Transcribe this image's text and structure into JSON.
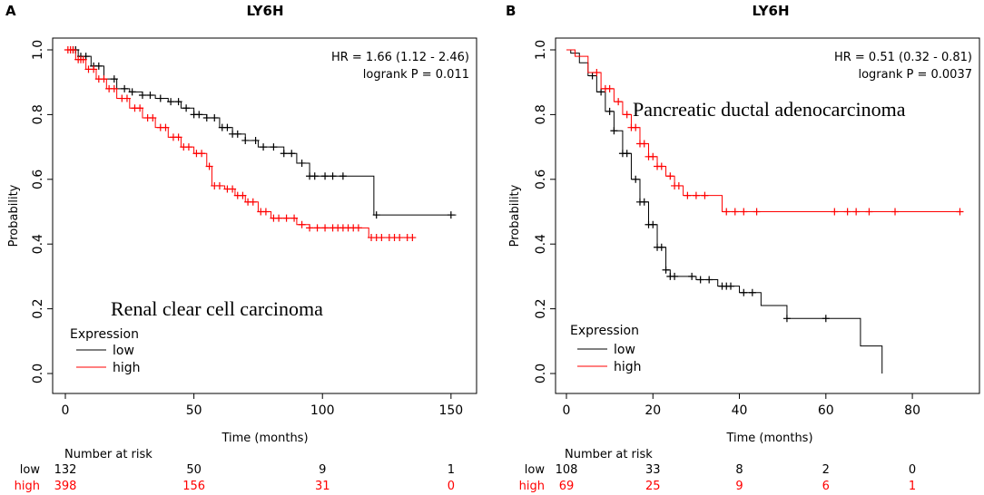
{
  "chart_data": [
    {
      "type": "line",
      "panel_label": "A",
      "title": "LY6H",
      "subtitle": "Renal clear cell carcinoma",
      "xlabel": "Time (months)",
      "ylabel": "Probability",
      "xlim": [
        0,
        155
      ],
      "ylim": [
        0,
        1.0
      ],
      "xticks": [
        0,
        50,
        100,
        150
      ],
      "xtick_labels": [
        "0",
        "50",
        "100",
        "150"
      ],
      "yticks": [
        0,
        0.2,
        0.4,
        0.6,
        0.8,
        1.0
      ],
      "ytick_labels": [
        "0.0",
        "0.2",
        "0.4",
        "0.6",
        "0.8",
        "1.0"
      ],
      "stats": [
        "HR = 1.66 (1.12 - 2.46)",
        "logrank P = 0.011"
      ],
      "legend": {
        "title": "Expression",
        "placement": "bottom-left",
        "entries": [
          "low",
          "high"
        ]
      },
      "series": [
        {
          "name": "low",
          "color": "#000000",
          "steps": [
            [
              0,
              1.0
            ],
            [
              5,
              0.98
            ],
            [
              10,
              0.95
            ],
            [
              15,
              0.91
            ],
            [
              20,
              0.88
            ],
            [
              25,
              0.87
            ],
            [
              30,
              0.86
            ],
            [
              35,
              0.85
            ],
            [
              40,
              0.84
            ],
            [
              45,
              0.82
            ],
            [
              50,
              0.8
            ],
            [
              55,
              0.79
            ],
            [
              60,
              0.76
            ],
            [
              65,
              0.74
            ],
            [
              70,
              0.72
            ],
            [
              75,
              0.7
            ],
            [
              85,
              0.68
            ],
            [
              90,
              0.65
            ],
            [
              95,
              0.61
            ],
            [
              110,
              0.61
            ],
            [
              120,
              0.49
            ],
            [
              152,
              0.49
            ]
          ],
          "censor_x": [
            3,
            4,
            6,
            8,
            11,
            13,
            19,
            23,
            26,
            30,
            33,
            37,
            41,
            44,
            47,
            50,
            52,
            55,
            58,
            61,
            63,
            65,
            67,
            70,
            74,
            77,
            81,
            85,
            88,
            92,
            95,
            97,
            101,
            104,
            108,
            121,
            150
          ]
        },
        {
          "name": "high",
          "color": "#ff0000",
          "steps": [
            [
              0,
              1.0
            ],
            [
              4,
              0.97
            ],
            [
              8,
              0.94
            ],
            [
              12,
              0.91
            ],
            [
              16,
              0.88
            ],
            [
              20,
              0.85
            ],
            [
              25,
              0.82
            ],
            [
              30,
              0.79
            ],
            [
              35,
              0.76
            ],
            [
              40,
              0.73
            ],
            [
              45,
              0.7
            ],
            [
              50,
              0.68
            ],
            [
              55,
              0.64
            ],
            [
              57,
              0.58
            ],
            [
              62,
              0.57
            ],
            [
              66,
              0.55
            ],
            [
              70,
              0.53
            ],
            [
              75,
              0.5
            ],
            [
              80,
              0.48
            ],
            [
              90,
              0.46
            ],
            [
              95,
              0.45
            ],
            [
              116,
              0.45
            ],
            [
              118,
              0.42
            ],
            [
              136,
              0.42
            ]
          ],
          "censor_x": [
            1,
            2,
            3,
            5,
            6,
            7,
            9,
            11,
            13,
            15,
            17,
            19,
            22,
            24,
            27,
            29,
            32,
            34,
            37,
            39,
            42,
            44,
            46,
            48,
            51,
            53,
            56,
            58,
            60,
            63,
            65,
            67,
            69,
            71,
            73,
            76,
            78,
            81,
            83,
            86,
            89,
            92,
            95,
            98,
            101,
            104,
            106,
            108,
            110,
            112,
            114,
            119,
            121,
            123,
            126,
            128,
            130,
            133,
            135
          ]
        }
      ],
      "risk_table": {
        "header": "Number at risk",
        "rows": [
          {
            "group": "low",
            "color": "#000000",
            "values": [
              "132",
              "50",
              "9",
              "1"
            ]
          },
          {
            "group": "high",
            "color": "#ff0000",
            "values": [
              "398",
              "156",
              "31",
              "0"
            ]
          }
        ]
      }
    },
    {
      "type": "line",
      "panel_label": "B",
      "title": "LY6H",
      "subtitle": "Pancreatic ductal adenocarcinoma",
      "xlabel": "Time (months)",
      "ylabel": "Probability",
      "xlim": [
        0,
        93
      ],
      "ylim": [
        0,
        1.0
      ],
      "xticks": [
        0,
        20,
        40,
        60,
        80
      ],
      "xtick_labels": [
        "0",
        "20",
        "40",
        "60",
        "80"
      ],
      "yticks": [
        0,
        0.2,
        0.4,
        0.6,
        0.8,
        1.0
      ],
      "ytick_labels": [
        "0.0",
        "0.2",
        "0.4",
        "0.6",
        "0.8",
        "1.0"
      ],
      "stats": [
        "HR = 0.51 (0.32 - 0.81)",
        "logrank P = 0.0037"
      ],
      "legend": {
        "title": "Expression",
        "placement": "bottom-left",
        "entries": [
          "low",
          "high"
        ]
      },
      "series": [
        {
          "name": "low",
          "color": "#000000",
          "steps": [
            [
              0,
              1.0
            ],
            [
              1,
              0.99
            ],
            [
              3,
              0.96
            ],
            [
              5,
              0.92
            ],
            [
              7,
              0.87
            ],
            [
              9,
              0.81
            ],
            [
              11,
              0.75
            ],
            [
              13,
              0.68
            ],
            [
              15,
              0.6
            ],
            [
              17,
              0.53
            ],
            [
              19,
              0.46
            ],
            [
              21,
              0.39
            ],
            [
              23,
              0.32
            ],
            [
              24,
              0.3
            ],
            [
              30,
              0.29
            ],
            [
              35,
              0.27
            ],
            [
              40,
              0.25
            ],
            [
              45,
              0.21
            ],
            [
              51,
              0.17
            ],
            [
              60,
              0.17
            ],
            [
              68,
              0.085
            ],
            [
              73,
              0.0
            ]
          ],
          "censor_x": [
            6,
            8,
            10,
            11,
            13,
            14,
            16,
            17,
            18,
            19,
            20,
            21,
            22,
            23,
            24,
            25,
            29,
            31,
            33,
            36,
            37,
            38,
            41,
            43,
            51,
            60
          ]
        },
        {
          "name": "high",
          "color": "#ff0000",
          "steps": [
            [
              0,
              1.0
            ],
            [
              2,
              0.98
            ],
            [
              5,
              0.93
            ],
            [
              8,
              0.88
            ],
            [
              11,
              0.84
            ],
            [
              13,
              0.8
            ],
            [
              15,
              0.76
            ],
            [
              17,
              0.71
            ],
            [
              19,
              0.67
            ],
            [
              21,
              0.64
            ],
            [
              23,
              0.61
            ],
            [
              25,
              0.58
            ],
            [
              27,
              0.55
            ],
            [
              35,
              0.55
            ],
            [
              36,
              0.5
            ],
            [
              91,
              0.5
            ]
          ],
          "censor_x": [
            7,
            9,
            10,
            12,
            14,
            15,
            16,
            17,
            18,
            19,
            20,
            21,
            22,
            24,
            25,
            26,
            28,
            30,
            32,
            37,
            39,
            41,
            44,
            62,
            65,
            67,
            70,
            76,
            91
          ]
        }
      ],
      "risk_table": {
        "header": "Number at risk",
        "rows": [
          {
            "group": "low",
            "color": "#000000",
            "values": [
              "108",
              "33",
              "8",
              "2",
              "0"
            ]
          },
          {
            "group": "high",
            "color": "#ff0000",
            "values": [
              "69",
              "25",
              "9",
              "6",
              "1"
            ]
          }
        ]
      }
    }
  ]
}
